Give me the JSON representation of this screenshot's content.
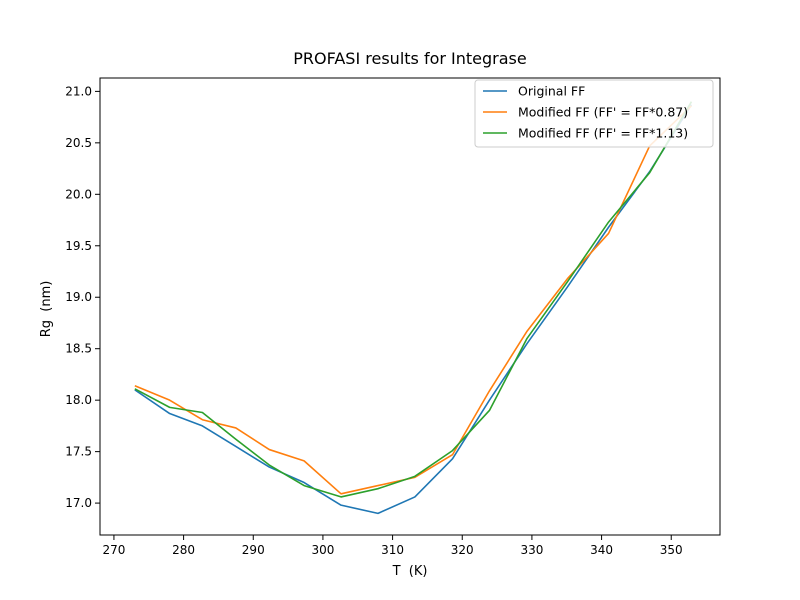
{
  "chart_data": {
    "type": "line",
    "title": "PROFASI results for Integrase",
    "xlabel": "T  (K)",
    "ylabel": "Rg  (nm)",
    "xlim": [
      268.0,
      357.0
    ],
    "ylim": [
      16.69,
      21.13
    ],
    "xticks": [
      270,
      280,
      290,
      300,
      310,
      320,
      330,
      340,
      350
    ],
    "xtick_labels": [
      "270",
      "280",
      "290",
      "300",
      "310",
      "320",
      "330",
      "340",
      "350"
    ],
    "yticks": [
      17.0,
      17.5,
      18.0,
      18.5,
      19.0,
      19.5,
      20.0,
      20.5,
      21.0
    ],
    "ytick_labels": [
      "17.0",
      "17.5",
      "18.0",
      "18.5",
      "19.0",
      "19.5",
      "20.0",
      "20.5",
      "21.0"
    ],
    "grid": false,
    "legend_position": "top-right",
    "series": [
      {
        "name": "Original FF",
        "color": "#1f77b4",
        "x": [
          273,
          278,
          282.7,
          287.5,
          292.3,
          297.3,
          302.6,
          307.9,
          313.2,
          318.6,
          323.9,
          329.3,
          335.1,
          341,
          346.9,
          352.9
        ],
        "y": [
          18.1,
          17.87,
          17.75,
          17.55,
          17.35,
          17.2,
          16.98,
          16.9,
          17.06,
          17.43,
          18.0,
          18.55,
          19.1,
          19.68,
          20.22,
          20.87
        ]
      },
      {
        "name": "Modified FF (FF' = FF*0.87)",
        "color": "#ff7f0e",
        "x": [
          273,
          278,
          282.7,
          287.5,
          292.3,
          297.3,
          302.6,
          307.9,
          313.2,
          318.6,
          323.9,
          329.3,
          335.1,
          341,
          346.9,
          352.9
        ],
        "y": [
          18.14,
          18.0,
          17.81,
          17.73,
          17.52,
          17.41,
          17.09,
          17.17,
          17.25,
          17.47,
          18.09,
          18.67,
          19.18,
          19.62,
          20.47,
          20.86
        ]
      },
      {
        "name": "Modified FF (FF' = FF*1.13)",
        "color": "#2ca02c",
        "x": [
          273,
          278,
          282.7,
          287.5,
          292.3,
          297.3,
          302.6,
          307.9,
          313.2,
          318.6,
          323.9,
          329.3,
          335.1,
          341,
          346.9,
          352.9
        ],
        "y": [
          18.11,
          17.93,
          17.88,
          17.62,
          17.37,
          17.17,
          17.06,
          17.14,
          17.26,
          17.51,
          17.9,
          18.6,
          19.15,
          19.73,
          20.21,
          20.9
        ]
      }
    ]
  }
}
